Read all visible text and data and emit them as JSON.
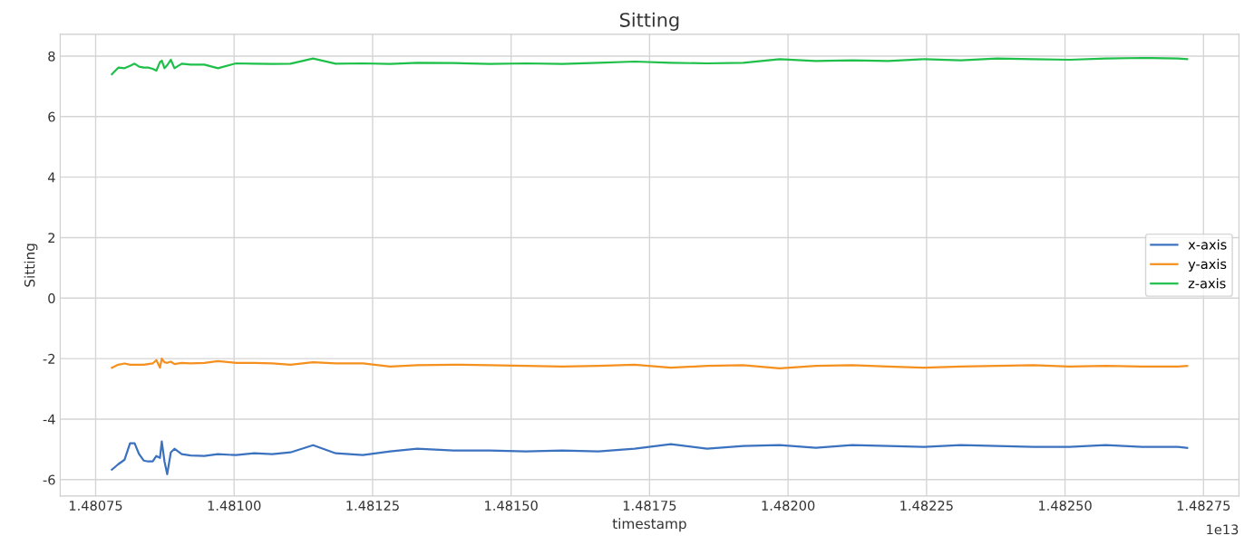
{
  "chart_data": {
    "type": "line",
    "title": "Sitting",
    "xlabel": "timestamp",
    "ylabel": "Sitting",
    "annotations": [
      "1e13"
    ],
    "x": [
      1.4807794,
      1.4807909,
      1.4808023,
      1.4808121,
      1.4808203,
      1.4808285,
      1.4808367,
      1.4808448,
      1.480853,
      1.4808596,
      1.4808661,
      1.4808694,
      1.4808743,
      1.4808792,
      1.4808857,
      1.4808923,
      1.4809054,
      1.4809217,
      1.4809462,
      1.4809708,
      1.4810035,
      1.4810362,
      1.4810689,
      1.4811016,
      1.4811425,
      1.4811834,
      1.4812324,
      1.4812815,
      1.4813305,
      1.4813959,
      1.4814614,
      1.4815268,
      1.4815922,
      1.4816576,
      1.481723,
      1.4817884,
      1.4818538,
      1.4819192,
      1.4819847,
      1.4820501,
      1.4821155,
      1.4821809,
      1.4822463,
      1.4823117,
      1.4823771,
      1.4824425,
      1.4825079,
      1.4825734,
      1.4826388,
      1.4827042,
      1.4827205
    ],
    "series": [
      {
        "name": "x-axis",
        "color": "#3b72c0",
        "values": [
          -5.67,
          -5.49,
          -5.34,
          -4.8,
          -4.8,
          -5.16,
          -5.37,
          -5.4,
          -5.4,
          -5.22,
          -5.28,
          -4.74,
          -5.4,
          -5.82,
          -5.1,
          -4.98,
          -5.16,
          -5.2,
          -5.22,
          -5.16,
          -5.19,
          -5.13,
          -5.16,
          -5.1,
          -4.86,
          -5.13,
          -5.19,
          -5.07,
          -4.98,
          -5.04,
          -5.04,
          -5.07,
          -5.04,
          -5.07,
          -4.98,
          -4.83,
          -4.98,
          -4.89,
          -4.86,
          -4.95,
          -4.86,
          -4.89,
          -4.92,
          -4.86,
          -4.89,
          -4.92,
          -4.92,
          -4.86,
          -4.92,
          -4.92,
          -4.95
        ]
      },
      {
        "name": "y-axis",
        "color": "#f5901e",
        "values": [
          -2.3,
          -2.2,
          -2.16,
          -2.2,
          -2.2,
          -2.2,
          -2.2,
          -2.18,
          -2.16,
          -2.05,
          -2.3,
          -2.0,
          -2.12,
          -2.14,
          -2.1,
          -2.18,
          -2.14,
          -2.16,
          -2.14,
          -2.08,
          -2.14,
          -2.14,
          -2.16,
          -2.2,
          -2.12,
          -2.16,
          -2.16,
          -2.26,
          -2.22,
          -2.2,
          -2.22,
          -2.24,
          -2.26,
          -2.24,
          -2.2,
          -2.3,
          -2.24,
          -2.22,
          -2.32,
          -2.24,
          -2.22,
          -2.26,
          -2.3,
          -2.26,
          -2.24,
          -2.22,
          -2.26,
          -2.24,
          -2.26,
          -2.26,
          -2.24
        ]
      },
      {
        "name": "z-axis",
        "color": "#1fc04a",
        "values": [
          7.4,
          7.62,
          7.6,
          7.68,
          7.75,
          7.65,
          7.62,
          7.62,
          7.58,
          7.52,
          7.8,
          7.85,
          7.6,
          7.7,
          7.88,
          7.6,
          7.75,
          7.72,
          7.72,
          7.6,
          7.76,
          7.75,
          7.74,
          7.75,
          7.92,
          7.75,
          7.76,
          7.74,
          7.78,
          7.77,
          7.74,
          7.76,
          7.74,
          7.78,
          7.82,
          7.78,
          7.76,
          7.78,
          7.9,
          7.84,
          7.86,
          7.84,
          7.9,
          7.86,
          7.92,
          7.9,
          7.88,
          7.92,
          7.94,
          7.92,
          7.9
        ]
      }
    ],
    "xlim": [
      1.480686,
      1.482814
    ],
    "xticks": [
      1.48075,
      {
        "value": 1.481,
        "label": "1.48100"
      },
      1.48125,
      {
        "value": 1.4815,
        "label": "1.48150"
      },
      1.48175,
      {
        "value": 1.482,
        "label": "1.48200"
      },
      1.48225,
      {
        "value": 1.4825,
        "label": "1.48250"
      },
      1.48275
    ],
    "ylim": [
      -6.54,
      8.72
    ],
    "yticks": [
      -6,
      -4,
      -2,
      0,
      2,
      4,
      6,
      8
    ],
    "grid": true,
    "legend": "right",
    "marker": "none",
    "line_style": "solid"
  }
}
